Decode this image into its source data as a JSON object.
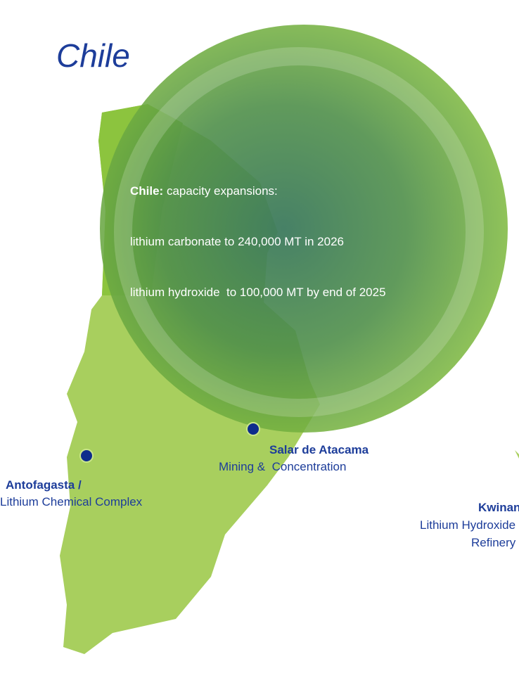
{
  "title": "Chile",
  "callout": {
    "label": "Chile:",
    "lines": [
      "capacity expansions:",
      "lithium carbonate to 240,000 MT in 2026",
      "lithium hydroxide  to 100,000 MT by end of 2025"
    ]
  },
  "sites": [
    {
      "name": "Salar de Atacama",
      "description": [
        "Mining &  Concentration"
      ]
    },
    {
      "name": "Antofagasta /",
      "description": [
        "Lithium Chemical Complex"
      ]
    },
    {
      "name": "Kwinana",
      "description": [
        "Lithium Hydroxide",
        "Refinery"
      ]
    }
  ]
}
